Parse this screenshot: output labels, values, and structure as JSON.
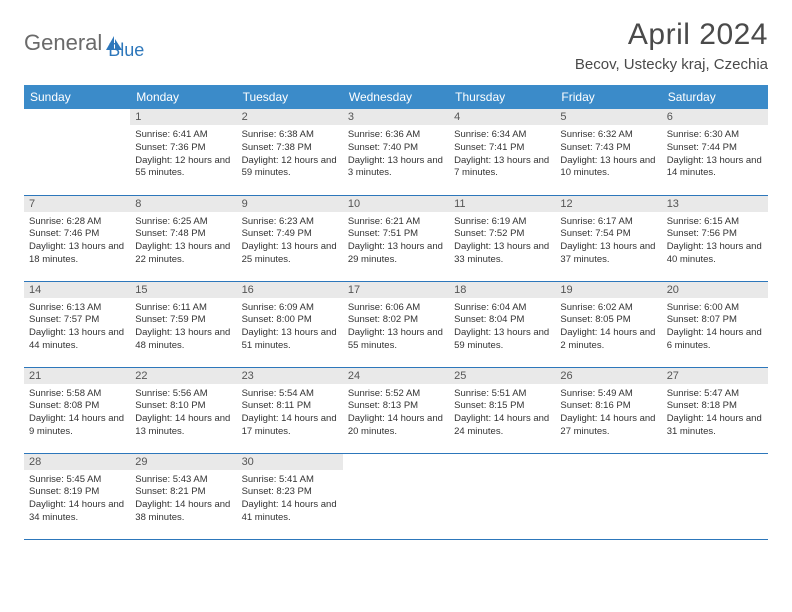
{
  "logo": {
    "text1": "General",
    "text2": "Blue"
  },
  "title": "April 2024",
  "location": "Becov, Ustecky kraj, Czechia",
  "day_headers": [
    "Sunday",
    "Monday",
    "Tuesday",
    "Wednesday",
    "Thursday",
    "Friday",
    "Saturday"
  ],
  "header_bg": "#3b8bc9",
  "header_fg": "#ffffff",
  "border_color": "#2d77bb",
  "daynum_bg": "#e9e9e9",
  "weeks": [
    [
      null,
      {
        "d": "1",
        "sr": "6:41 AM",
        "ss": "7:36 PM",
        "dl": "12 hours and 55 minutes."
      },
      {
        "d": "2",
        "sr": "6:38 AM",
        "ss": "7:38 PM",
        "dl": "12 hours and 59 minutes."
      },
      {
        "d": "3",
        "sr": "6:36 AM",
        "ss": "7:40 PM",
        "dl": "13 hours and 3 minutes."
      },
      {
        "d": "4",
        "sr": "6:34 AM",
        "ss": "7:41 PM",
        "dl": "13 hours and 7 minutes."
      },
      {
        "d": "5",
        "sr": "6:32 AM",
        "ss": "7:43 PM",
        "dl": "13 hours and 10 minutes."
      },
      {
        "d": "6",
        "sr": "6:30 AM",
        "ss": "7:44 PM",
        "dl": "13 hours and 14 minutes."
      }
    ],
    [
      {
        "d": "7",
        "sr": "6:28 AM",
        "ss": "7:46 PM",
        "dl": "13 hours and 18 minutes."
      },
      {
        "d": "8",
        "sr": "6:25 AM",
        "ss": "7:48 PM",
        "dl": "13 hours and 22 minutes."
      },
      {
        "d": "9",
        "sr": "6:23 AM",
        "ss": "7:49 PM",
        "dl": "13 hours and 25 minutes."
      },
      {
        "d": "10",
        "sr": "6:21 AM",
        "ss": "7:51 PM",
        "dl": "13 hours and 29 minutes."
      },
      {
        "d": "11",
        "sr": "6:19 AM",
        "ss": "7:52 PM",
        "dl": "13 hours and 33 minutes."
      },
      {
        "d": "12",
        "sr": "6:17 AM",
        "ss": "7:54 PM",
        "dl": "13 hours and 37 minutes."
      },
      {
        "d": "13",
        "sr": "6:15 AM",
        "ss": "7:56 PM",
        "dl": "13 hours and 40 minutes."
      }
    ],
    [
      {
        "d": "14",
        "sr": "6:13 AM",
        "ss": "7:57 PM",
        "dl": "13 hours and 44 minutes."
      },
      {
        "d": "15",
        "sr": "6:11 AM",
        "ss": "7:59 PM",
        "dl": "13 hours and 48 minutes."
      },
      {
        "d": "16",
        "sr": "6:09 AM",
        "ss": "8:00 PM",
        "dl": "13 hours and 51 minutes."
      },
      {
        "d": "17",
        "sr": "6:06 AM",
        "ss": "8:02 PM",
        "dl": "13 hours and 55 minutes."
      },
      {
        "d": "18",
        "sr": "6:04 AM",
        "ss": "8:04 PM",
        "dl": "13 hours and 59 minutes."
      },
      {
        "d": "19",
        "sr": "6:02 AM",
        "ss": "8:05 PM",
        "dl": "14 hours and 2 minutes."
      },
      {
        "d": "20",
        "sr": "6:00 AM",
        "ss": "8:07 PM",
        "dl": "14 hours and 6 minutes."
      }
    ],
    [
      {
        "d": "21",
        "sr": "5:58 AM",
        "ss": "8:08 PM",
        "dl": "14 hours and 9 minutes."
      },
      {
        "d": "22",
        "sr": "5:56 AM",
        "ss": "8:10 PM",
        "dl": "14 hours and 13 minutes."
      },
      {
        "d": "23",
        "sr": "5:54 AM",
        "ss": "8:11 PM",
        "dl": "14 hours and 17 minutes."
      },
      {
        "d": "24",
        "sr": "5:52 AM",
        "ss": "8:13 PM",
        "dl": "14 hours and 20 minutes."
      },
      {
        "d": "25",
        "sr": "5:51 AM",
        "ss": "8:15 PM",
        "dl": "14 hours and 24 minutes."
      },
      {
        "d": "26",
        "sr": "5:49 AM",
        "ss": "8:16 PM",
        "dl": "14 hours and 27 minutes."
      },
      {
        "d": "27",
        "sr": "5:47 AM",
        "ss": "8:18 PM",
        "dl": "14 hours and 31 minutes."
      }
    ],
    [
      {
        "d": "28",
        "sr": "5:45 AM",
        "ss": "8:19 PM",
        "dl": "14 hours and 34 minutes."
      },
      {
        "d": "29",
        "sr": "5:43 AM",
        "ss": "8:21 PM",
        "dl": "14 hours and 38 minutes."
      },
      {
        "d": "30",
        "sr": "5:41 AM",
        "ss": "8:23 PM",
        "dl": "14 hours and 41 minutes."
      },
      null,
      null,
      null,
      null
    ]
  ],
  "labels": {
    "sunrise": "Sunrise:",
    "sunset": "Sunset:",
    "daylight": "Daylight:"
  }
}
